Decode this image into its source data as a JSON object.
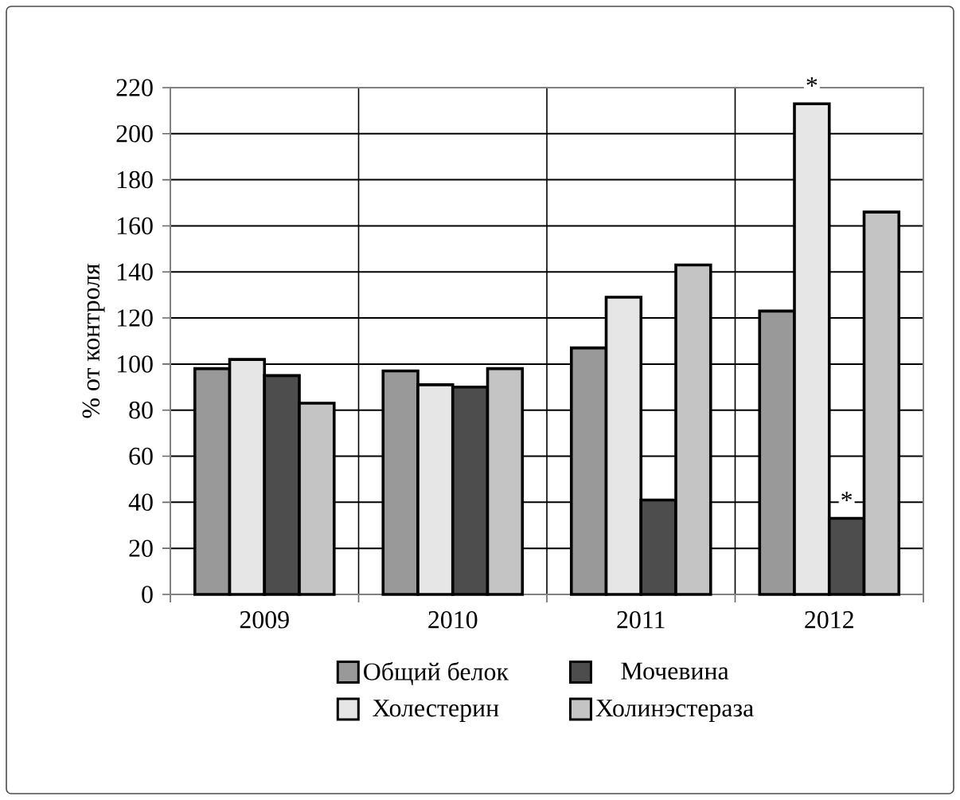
{
  "chart_data": {
    "type": "bar",
    "ylabel": "% от контроля",
    "categories": [
      "2009",
      "2010",
      "2011",
      "2012"
    ],
    "series": [
      {
        "name": "Общий белок",
        "color": "#999999",
        "values": [
          98,
          97,
          107,
          123
        ]
      },
      {
        "name": "Холестерин",
        "color": "#e6e6e6",
        "values": [
          102,
          91,
          129,
          213
        ]
      },
      {
        "name": "Мочевина",
        "color": "#4d4d4d",
        "values": [
          95,
          90,
          41,
          33
        ]
      },
      {
        "name": "Холинэстераза",
        "color": "#c4c4c4",
        "values": [
          83,
          98,
          143,
          166
        ]
      }
    ],
    "ylim": [
      0,
      220
    ],
    "yticks": [
      0,
      20,
      40,
      60,
      80,
      100,
      120,
      140,
      160,
      180,
      200,
      220
    ],
    "grid": true,
    "legend": "bottom",
    "annotations": [
      {
        "text": "*",
        "x": "2012",
        "y": 213
      },
      {
        "text": "*",
        "x": "2012",
        "y": 33
      }
    ]
  }
}
